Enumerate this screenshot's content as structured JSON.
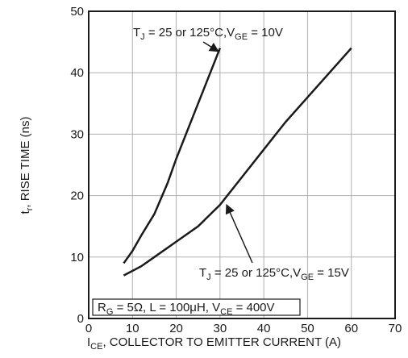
{
  "chart_data": {
    "type": "line",
    "x_label": [
      "I",
      "CE",
      ", COLLECTOR TO EMITTER CURRENT (A)"
    ],
    "y_label": [
      "t",
      "r",
      ", RISE TIME (ns)"
    ],
    "xlim": [
      0,
      70
    ],
    "xticks": [
      0,
      10,
      20,
      30,
      40,
      50,
      60,
      70
    ],
    "ylim": [
      0,
      50
    ],
    "yticks": [
      0,
      10,
      20,
      30,
      40,
      50
    ],
    "grid": true,
    "series": [
      {
        "name": [
          "T",
          "J",
          " = 25 or 125°C,V",
          "GE",
          " = 10V"
        ],
        "color": "#1a1a1a",
        "x": [
          8,
          10,
          12,
          15,
          18,
          20,
          25,
          30
        ],
        "values": [
          9,
          11,
          13.5,
          17,
          22,
          26,
          35,
          44
        ]
      },
      {
        "name": [
          "T",
          "J",
          " = 25 or 125°C,V",
          "GE",
          " = 15V"
        ],
        "color": "#1a1a1a",
        "x": [
          8,
          12,
          15,
          20,
          25,
          30,
          35,
          40,
          45,
          50,
          55,
          60
        ],
        "values": [
          7,
          8.5,
          10,
          12.5,
          15,
          18.5,
          23,
          27.5,
          32,
          36,
          40,
          44
        ]
      }
    ],
    "conditions": [
      "R",
      "G",
      " = 5Ω, L = 100μH, V",
      "CE",
      " = 400V"
    ]
  }
}
